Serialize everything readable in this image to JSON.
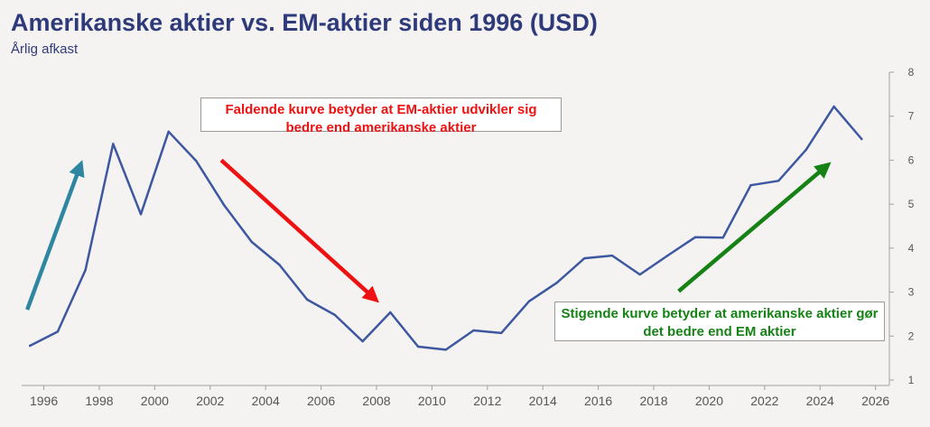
{
  "chart_data": {
    "type": "line",
    "title": "Amerikanske aktier vs. EM-aktier siden 1996 (USD)",
    "subtitle": "Årlig afkast",
    "xlabel": "",
    "ylabel": "",
    "xlim": [
      1995.2,
      2026.5
    ],
    "ylim": [
      1,
      8
    ],
    "x_ticks": [
      1996,
      1998,
      2000,
      2002,
      2004,
      2006,
      2008,
      2010,
      2012,
      2014,
      2016,
      2018,
      2020,
      2022,
      2024,
      2026
    ],
    "y_ticks": [
      1,
      2,
      3,
      4,
      5,
      6,
      7,
      8
    ],
    "y_axis_side": "right",
    "grid": false,
    "series": [
      {
        "color": "#3d57a0",
        "x": [
          1995.5,
          1996.5,
          1997.5,
          1998.5,
          1999.5,
          2000.5,
          2001.5,
          2002.5,
          2003.5,
          2004.5,
          2005.5,
          2006.5,
          2007.5,
          2008.5,
          2009.5,
          2010.5,
          2011.5,
          2012.5,
          2013.5,
          2014.5,
          2015.5,
          2016.5,
          2017.5,
          2018.5,
          2019.5,
          2020.5,
          2021.5,
          2022.5,
          2023.5,
          2024.5,
          2025.5
        ],
        "values": [
          1.78,
          2.1,
          3.5,
          6.37,
          4.77,
          6.65,
          5.98,
          4.98,
          4.14,
          3.62,
          2.83,
          2.48,
          1.88,
          2.54,
          1.76,
          1.69,
          2.13,
          2.07,
          2.79,
          3.21,
          3.77,
          3.83,
          3.4,
          3.83,
          4.25,
          4.24,
          5.43,
          5.53,
          6.24,
          7.22,
          6.48
        ]
      }
    ],
    "annotations": [
      {
        "id": "red",
        "text": "Faldende kurve betyder at  EM-aktier udvikler sig bedre end amerikanske aktier",
        "color": "#ee1111"
      },
      {
        "id": "green",
        "text": "Stigende kurve betyder at amerikanske aktier gør det bedre end EM aktier",
        "color": "#168216"
      }
    ],
    "arrows": [
      {
        "color": "#2e86a0",
        "from": [
          1995.4,
          2.6
        ],
        "to": [
          1997.3,
          5.85
        ]
      },
      {
        "color": "#ee1111",
        "from": [
          2002.4,
          6.0
        ],
        "to": [
          2007.9,
          2.87
        ]
      },
      {
        "color": "#168216",
        "from": [
          2018.9,
          3.02
        ],
        "to": [
          2024.2,
          5.85
        ]
      }
    ]
  }
}
